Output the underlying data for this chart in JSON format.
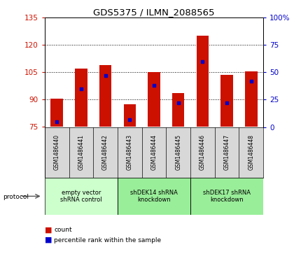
{
  "title": "GDS5375 / ILMN_2088565",
  "samples": [
    "GSM1486440",
    "GSM1486441",
    "GSM1486442",
    "GSM1486443",
    "GSM1486444",
    "GSM1486445",
    "GSM1486446",
    "GSM1486447",
    "GSM1486448"
  ],
  "counts": [
    90.5,
    107.0,
    109.0,
    87.5,
    105.0,
    93.5,
    125.0,
    103.5,
    105.5
  ],
  "percentiles": [
    5,
    35,
    47,
    7,
    38,
    22,
    60,
    22,
    42
  ],
  "ylim_left": [
    75,
    135
  ],
  "ylim_right": [
    0,
    100
  ],
  "yticks_left": [
    75,
    90,
    105,
    120,
    135
  ],
  "yticks_right": [
    0,
    25,
    50,
    75,
    100
  ],
  "bar_color": "#cc1100",
  "percentile_color": "#0000cc",
  "protocol_groups": [
    {
      "label": "empty vector\nshRNA control",
      "start": 0,
      "end": 3,
      "color": "#ccffcc"
    },
    {
      "label": "shDEK14 shRNA\nknockdown",
      "start": 3,
      "end": 6,
      "color": "#99ee99"
    },
    {
      "label": "shDEK17 shRNA\nknockdown",
      "start": 6,
      "end": 9,
      "color": "#99ee99"
    }
  ],
  "legend_count_label": "count",
  "legend_pct_label": "percentile rank within the sample",
  "protocol_label": "protocol"
}
